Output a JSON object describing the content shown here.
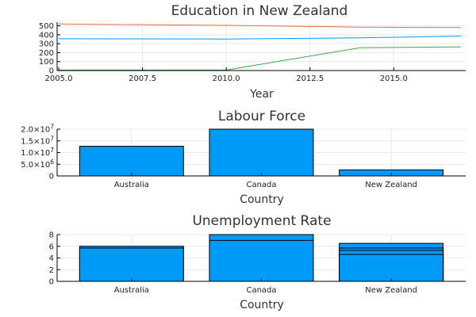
{
  "chart_data": [
    {
      "type": "line",
      "title": "Education in New Zealand",
      "xlabel": "Year",
      "ylabel": "",
      "xlim": [
        2005,
        2017.1
      ],
      "ylim": [
        0,
        540
      ],
      "xticks": [
        2005.0,
        2007.5,
        2010.0,
        2012.5,
        2015.0
      ],
      "xtick_labels": [
        "2005.0",
        "2007.5",
        "2010.0",
        "2012.5",
        "2015.0"
      ],
      "yticks": [
        0,
        100,
        200,
        300,
        400,
        500
      ],
      "ytick_labels": [
        "0",
        "100",
        "200",
        "300",
        "400",
        "500"
      ],
      "grid": true,
      "legend": "none",
      "series": [
        {
          "color": "#e26f46",
          "x": [
            2005,
            2010,
            2014,
            2017
          ],
          "y": [
            520,
            505,
            485,
            480
          ]
        },
        {
          "color": "#009af9",
          "x": [
            2005,
            2010,
            2014,
            2017
          ],
          "y": [
            355,
            352,
            365,
            385
          ]
        },
        {
          "color": "#3da44d",
          "x": [
            2005,
            2010,
            2014,
            2017
          ],
          "y": [
            5,
            5,
            255,
            265
          ]
        }
      ]
    },
    {
      "type": "bar",
      "title": "Labour Force",
      "xlabel": "Country",
      "ylabel": "",
      "ylim": [
        0,
        20000000
      ],
      "categories": [
        "Australia",
        "Canada",
        "New Zealand"
      ],
      "values": [
        12700000,
        20000000,
        2600000
      ],
      "yticks": [
        0,
        5000000,
        10000000,
        15000000,
        20000000
      ],
      "ytick_labels": [
        {
          "base": "0",
          "exp": ""
        },
        {
          "base": "5.0×10",
          "exp": "6"
        },
        {
          "base": "1.0×10",
          "exp": "7"
        },
        {
          "base": "1.5×10",
          "exp": "7"
        },
        {
          "base": "2.0×10",
          "exp": "7"
        }
      ],
      "grid": true,
      "legend": "none",
      "color": "#009af9"
    },
    {
      "type": "bar",
      "title": "Unemployment Rate",
      "xlabel": "Country",
      "ylabel": "",
      "ylim": [
        0,
        8
      ],
      "categories": [
        "Australia",
        "Canada",
        "New Zealand"
      ],
      "series_values": [
        [
          6.0,
          5.7
        ],
        [
          8.0,
          7.0
        ],
        [
          6.5,
          5.7,
          5.3,
          4.6
        ]
      ],
      "yticks": [
        0,
        2,
        4,
        6,
        8
      ],
      "ytick_labels": [
        "0",
        "2",
        "4",
        "6",
        "8"
      ],
      "grid": true,
      "legend": "none",
      "color": "#009af9"
    }
  ]
}
